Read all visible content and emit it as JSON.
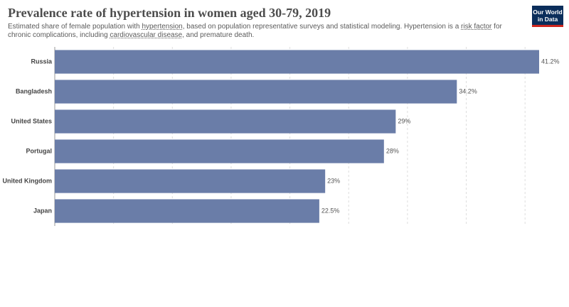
{
  "chart_data": {
    "type": "bar",
    "orientation": "horizontal",
    "title": "Prevalence rate of hypertension in women aged 30-79, 2019",
    "subtitle": [
      "Estimated share of female population with ",
      "hypertension",
      ", based on population representative surveys and statistical modeling. Hypertension is a ",
      "risk factor",
      " for chronic complications, including ",
      "cardiovascular disease",
      ", and premature death."
    ],
    "logo": "Our World in Data",
    "categories": [
      "Russia",
      "Bangladesh",
      "United States",
      "Portugal",
      "United Kingdom",
      "Japan"
    ],
    "values": [
      41.2,
      34.2,
      29,
      28,
      23,
      22.5
    ],
    "value_labels": [
      "41.2%",
      "34.2%",
      "29%",
      "28%",
      "23%",
      "22.5%"
    ],
    "color": "#6a7da8",
    "xlim": [
      0,
      41.2
    ],
    "xticks": [
      0,
      5,
      10,
      15,
      20,
      25,
      30,
      35,
      40
    ],
    "grid": true
  }
}
